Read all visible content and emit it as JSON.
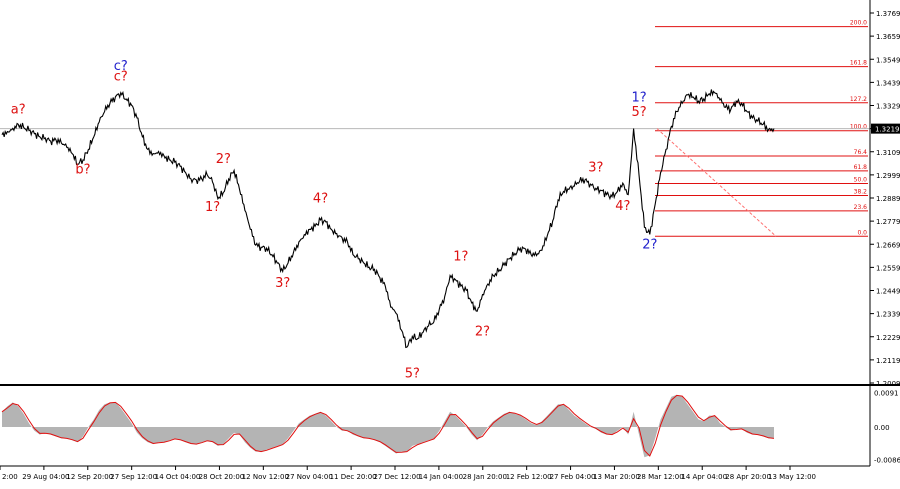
{
  "chart_data": {
    "type": "line",
    "instrument_price": "1.3219",
    "y_ticks": [
      "1.3769",
      "1.3659",
      "1.3549",
      "1.3439",
      "1.3329",
      "1.3219",
      "1.3109",
      "1.2999",
      "1.2889",
      "1.2779",
      "1.2669",
      "1.2559",
      "1.2449",
      "1.2339",
      "1.2229",
      "1.2119",
      "1.2009"
    ],
    "ylim": [
      1.2009,
      1.3769
    ],
    "x_labels": [
      "2:00",
      "29 Aug 04:00",
      "12 Sep 20:00",
      "27 Sep 12:00",
      "14 Oct 04:00",
      "28 Oct 20:00",
      "12 Nov 12:00",
      "27 Nov 04:00",
      "11 Dec 20:00",
      "27 Dec 12:00",
      "14 Jan 04:00",
      "28 Jan 20:00",
      "12 Feb 12:00",
      "27 Feb 04:00",
      "13 Mar 20:00",
      "28 Mar 12:00",
      "14 Apr 04:00",
      "28 Apr 20:00",
      "13 May 12:00"
    ],
    "price_path": [
      [
        0,
        1.319
      ],
      [
        1,
        1.3205
      ],
      [
        2,
        1.322
      ],
      [
        3,
        1.324
      ],
      [
        4,
        1.3225
      ],
      [
        5,
        1.321
      ],
      [
        6,
        1.3195
      ],
      [
        7,
        1.318
      ],
      [
        8,
        1.3175
      ],
      [
        9,
        1.316
      ],
      [
        10,
        1.3165
      ],
      [
        11,
        1.315
      ],
      [
        12,
        1.313
      ],
      [
        13,
        1.31
      ],
      [
        14,
        1.305
      ],
      [
        15,
        1.307
      ],
      [
        16,
        1.312
      ],
      [
        17,
        1.318
      ],
      [
        18,
        1.325
      ],
      [
        19,
        1.33
      ],
      [
        20,
        1.334
      ],
      [
        21,
        1.337
      ],
      [
        22,
        1.339
      ],
      [
        23,
        1.336
      ],
      [
        24,
        1.333
      ],
      [
        25,
        1.327
      ],
      [
        26,
        1.318
      ],
      [
        27,
        1.312
      ],
      [
        28,
        1.31
      ],
      [
        29,
        1.311
      ],
      [
        30,
        1.309
      ],
      [
        31,
        1.307
      ],
      [
        32,
        1.306
      ],
      [
        33,
        1.304
      ],
      [
        34,
        1.301
      ],
      [
        35,
        1.298
      ],
      [
        36,
        1.2975
      ],
      [
        37,
        1.298
      ],
      [
        38,
        1.3
      ],
      [
        39,
        1.2965
      ],
      [
        40,
        1.2885
      ],
      [
        41,
        1.2915
      ],
      [
        42,
        1.298
      ],
      [
        43,
        1.302
      ],
      [
        44,
        1.293
      ],
      [
        45,
        1.283
      ],
      [
        46,
        1.274
      ],
      [
        47,
        1.2665
      ],
      [
        48,
        1.2655
      ],
      [
        49,
        1.265
      ],
      [
        50,
        1.262
      ],
      [
        51,
        1.258
      ],
      [
        52,
        1.254
      ],
      [
        53,
        1.258
      ],
      [
        54,
        1.263
      ],
      [
        55,
        1.268
      ],
      [
        56,
        1.2715
      ],
      [
        57,
        1.274
      ],
      [
        58,
        1.2755
      ],
      [
        59,
        1.2785
      ],
      [
        60,
        1.2775
      ],
      [
        61,
        1.274
      ],
      [
        62,
        1.272
      ],
      [
        63,
        1.27
      ],
      [
        64,
        1.268
      ],
      [
        65,
        1.262
      ],
      [
        66,
        1.26
      ],
      [
        67,
        1.258
      ],
      [
        68,
        1.256
      ],
      [
        69,
        1.255
      ],
      [
        70,
        1.251
      ],
      [
        71,
        1.247
      ],
      [
        72,
        1.237
      ],
      [
        73,
        1.234
      ],
      [
        74,
        1.226
      ],
      [
        75,
        1.218
      ],
      [
        76,
        1.223
      ],
      [
        77,
        1.222
      ],
      [
        78,
        1.225
      ],
      [
        79,
        1.228
      ],
      [
        80,
        1.23
      ],
      [
        81,
        1.236
      ],
      [
        82,
        1.242
      ],
      [
        83,
        1.252
      ],
      [
        84,
        1.25
      ],
      [
        85,
        1.247
      ],
      [
        86,
        1.245
      ],
      [
        87,
        1.239
      ],
      [
        88,
        1.235
      ],
      [
        89,
        1.243
      ],
      [
        90,
        1.248
      ],
      [
        91,
        1.252
      ],
      [
        92,
        1.254
      ],
      [
        93,
        1.257
      ],
      [
        94,
        1.26
      ],
      [
        95,
        1.2625
      ],
      [
        96,
        1.265
      ],
      [
        97,
        1.2645
      ],
      [
        98,
        1.262
      ],
      [
        99,
        1.2615
      ],
      [
        100,
        1.264
      ],
      [
        101,
        1.271
      ],
      [
        102,
        1.278
      ],
      [
        103,
        1.288
      ],
      [
        104,
        1.292
      ],
      [
        105,
        1.293
      ],
      [
        106,
        1.2945
      ],
      [
        107,
        1.297
      ],
      [
        108,
        1.2975
      ],
      [
        109,
        1.2955
      ],
      [
        110,
        1.2935
      ],
      [
        111,
        1.2925
      ],
      [
        112,
        1.2905
      ],
      [
        113,
        1.2895
      ],
      [
        114,
        1.292
      ],
      [
        115,
        1.296
      ],
      [
        116,
        1.2905
      ],
      [
        117,
        1.3219
      ],
      [
        118,
        1.3
      ],
      [
        119,
        1.275
      ],
      [
        120,
        1.2716
      ],
      [
        121,
        1.286
      ],
      [
        122,
        1.301
      ],
      [
        123,
        1.312
      ],
      [
        124,
        1.323
      ],
      [
        125,
        1.33
      ],
      [
        126,
        1.334
      ],
      [
        127,
        1.338
      ],
      [
        128,
        1.337
      ],
      [
        129,
        1.335
      ],
      [
        130,
        1.336
      ],
      [
        131,
        1.3385
      ],
      [
        132,
        1.339
      ],
      [
        133,
        1.3355
      ],
      [
        134,
        1.332
      ],
      [
        135,
        1.331
      ],
      [
        136,
        1.335
      ],
      [
        137,
        1.334
      ],
      [
        138,
        1.33
      ],
      [
        139,
        1.327
      ],
      [
        140,
        1.3255
      ],
      [
        141,
        1.324
      ],
      [
        142,
        1.3215
      ],
      [
        143,
        1.3219
      ]
    ],
    "wave_labels": [
      {
        "text": "a?",
        "i": 3,
        "price": 1.3292,
        "color": "#dd1111"
      },
      {
        "text": "b?",
        "i": 15,
        "price": 1.3006,
        "color": "#dd1111"
      },
      {
        "text": "c?",
        "i": 22,
        "price": 1.3497,
        "color": "#2222cc"
      },
      {
        "text": "c?",
        "i": 22,
        "price": 1.3448,
        "color": "#dd1111"
      },
      {
        "text": "2?",
        "i": 41,
        "price": 1.3055,
        "color": "#dd1111"
      },
      {
        "text": "1?",
        "i": 39,
        "price": 1.2828,
        "color": "#dd1111"
      },
      {
        "text": "3?",
        "i": 52,
        "price": 1.2465,
        "color": "#dd1111"
      },
      {
        "text": "4?",
        "i": 59,
        "price": 1.2868,
        "color": "#dd1111"
      },
      {
        "text": "5?",
        "i": 76,
        "price": 1.2035,
        "color": "#dd1111"
      },
      {
        "text": "1?",
        "i": 85,
        "price": 1.2592,
        "color": "#dd1111"
      },
      {
        "text": "2?",
        "i": 89,
        "price": 1.2235,
        "color": "#dd1111"
      },
      {
        "text": "3?",
        "i": 110,
        "price": 1.3015,
        "color": "#dd1111"
      },
      {
        "text": "4?",
        "i": 115,
        "price": 1.2833,
        "color": "#dd1111"
      },
      {
        "text": "1?",
        "i": 118,
        "price": 1.3348,
        "color": "#2222cc"
      },
      {
        "text": "5?",
        "i": 118,
        "price": 1.3278,
        "color": "#dd1111"
      },
      {
        "text": "2?",
        "i": 120,
        "price": 1.2648,
        "color": "#2222cc"
      }
    ],
    "fib_levels": [
      {
        "label": "200.0",
        "price": 1.3704
      },
      {
        "label": "161.8",
        "price": 1.3514
      },
      {
        "label": "127.2",
        "price": 1.3342
      },
      {
        "label": "100.0",
        "price": 1.3209
      },
      {
        "label": "76.4",
        "price": 1.3089
      },
      {
        "label": "61.8",
        "price": 1.3018
      },
      {
        "label": "50.0",
        "price": 1.2958
      },
      {
        "label": "38.2",
        "price": 1.2901
      },
      {
        "label": "23.6",
        "price": 1.2828
      },
      {
        "label": "0.0",
        "price": 1.2707
      }
    ],
    "oscillator": {
      "y_ticks": [
        "0.0091",
        "0.00",
        "-0.00862"
      ],
      "ylim": [
        -0.0095,
        0.0095
      ],
      "values": [
        0.004,
        0.0055,
        0.0065,
        0.0055,
        0.0035,
        0.001,
        -0.001,
        -0.002,
        -0.0015,
        -0.002,
        -0.0025,
        -0.003,
        -0.003,
        -0.0035,
        -0.004,
        -0.0025,
        0.0,
        0.002,
        0.0045,
        0.006,
        0.0065,
        0.0065,
        0.005,
        0.003,
        0.001,
        -0.0015,
        -0.003,
        -0.004,
        -0.0045,
        -0.004,
        -0.004,
        -0.0035,
        -0.003,
        -0.0035,
        -0.004,
        -0.0045,
        -0.0045,
        -0.004,
        -0.0035,
        -0.004,
        -0.005,
        -0.0045,
        -0.003,
        -0.0015,
        -0.002,
        -0.004,
        -0.0055,
        -0.0065,
        -0.0065,
        -0.006,
        -0.0055,
        -0.005,
        -0.0045,
        -0.003,
        -0.001,
        0.001,
        0.002,
        0.003,
        0.0035,
        0.004,
        0.003,
        0.0015,
        0.0,
        -0.001,
        -0.001,
        -0.002,
        -0.0025,
        -0.003,
        -0.003,
        -0.0035,
        -0.004,
        -0.005,
        -0.006,
        -0.007,
        -0.0065,
        -0.0065,
        -0.005,
        -0.0045,
        -0.004,
        -0.0035,
        -0.003,
        -0.001,
        0.0015,
        0.004,
        0.003,
        0.0015,
        0.0,
        -0.002,
        -0.0035,
        -0.002,
        0.0,
        0.0015,
        0.0025,
        0.0035,
        0.004,
        0.0035,
        0.003,
        0.002,
        0.001,
        0.0005,
        0.0015,
        0.003,
        0.0045,
        0.006,
        0.006,
        0.0045,
        0.003,
        0.002,
        0.001,
        0.0,
        -0.0005,
        -0.0015,
        -0.002,
        -0.002,
        -0.001,
        0.0,
        -0.002,
        0.004,
        -0.002,
        -0.008,
        -0.0075,
        -0.003,
        0.002,
        0.005,
        0.008,
        0.0085,
        0.008,
        0.006,
        0.004,
        0.002,
        0.0015,
        0.003,
        0.003,
        0.001,
        0.0,
        -0.001,
        -0.0005,
        -0.0005,
        -0.0015,
        -0.002,
        -0.002,
        -0.0025,
        -0.003,
        -0.003
      ]
    }
  }
}
